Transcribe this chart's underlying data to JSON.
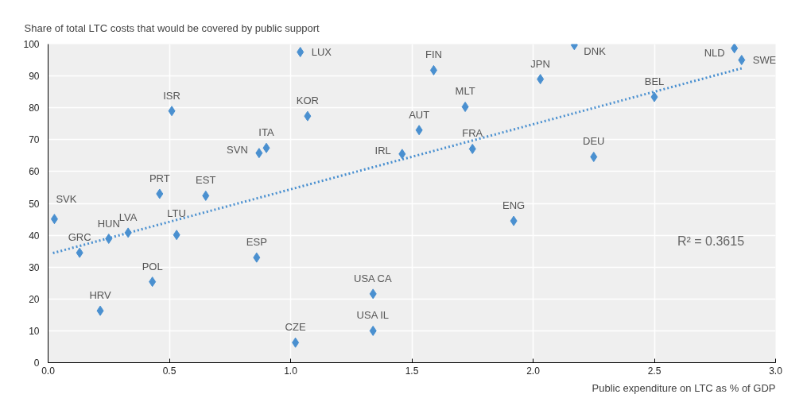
{
  "chart_data": {
    "type": "scatter",
    "ylabel": "Share of total LTC costs that would be covered by public support",
    "xlabel": "Public expenditure on LTC as % of GDP",
    "xlim": [
      0,
      3
    ],
    "xticks": [
      {
        "value": 0,
        "label": "0.0"
      },
      0.5,
      {
        "value": 1,
        "label": "1.0"
      },
      1.5,
      {
        "value": 2,
        "label": "2.0"
      },
      2.5,
      {
        "value": 3,
        "label": "3.0"
      }
    ],
    "ylim": [
      0,
      100
    ],
    "yticks": [
      0,
      10,
      20,
      30,
      40,
      50,
      60,
      70,
      80,
      90,
      100
    ],
    "grid": true,
    "marker": "diamond",
    "series": [
      {
        "color": "#4a90d0",
        "x": [
          0.026,
          0.13,
          0.25,
          0.33,
          0.215,
          0.43,
          0.46,
          0.51,
          0.53,
          0.65,
          0.86,
          0.87,
          0.9,
          1.02,
          1.04,
          1.07,
          1.34,
          1.34,
          1.46,
          1.53,
          1.59,
          1.72,
          1.75,
          1.92,
          2.03,
          2.17,
          2.25,
          2.5,
          2.83,
          2.86
        ],
        "values": [
          45.1,
          34.5,
          38.9,
          40.8,
          16.3,
          25.4,
          53,
          79,
          40.1,
          52.4,
          33,
          65.8,
          67.4,
          6.3,
          97.5,
          77.4,
          21.6,
          10,
          65.5,
          73,
          91.8,
          80.3,
          67.1,
          44.5,
          89,
          99.7,
          64.6,
          83.4,
          98.7,
          95
        ]
      },
      {
        "type": "line",
        "color": "#4a90d0",
        "line_style": "dotted",
        "marker": "none",
        "x": [
          0.02,
          2.86
        ],
        "values": [
          34.4,
          92.4
        ]
      }
    ],
    "annotations": [
      {
        "text": "SVK",
        "x": 0.026,
        "y": 45.1
      },
      {
        "text": "GRC",
        "x": 0.13,
        "y": 34.5
      },
      {
        "text": "HUN",
        "x": 0.25,
        "y": 38.9
      },
      {
        "text": "LVA",
        "x": 0.33,
        "y": 40.8
      },
      {
        "text": "HRV",
        "x": 0.215,
        "y": 16.3
      },
      {
        "text": "POL",
        "x": 0.43,
        "y": 25.4
      },
      {
        "text": "PRT",
        "x": 0.46,
        "y": 53
      },
      {
        "text": "ISR",
        "x": 0.51,
        "y": 79
      },
      {
        "text": "LTU",
        "x": 0.53,
        "y": 40.1
      },
      {
        "text": "EST",
        "x": 0.65,
        "y": 52.4
      },
      {
        "text": "ESP",
        "x": 0.86,
        "y": 33
      },
      {
        "text": "SVN",
        "x": 0.87,
        "y": 65.8
      },
      {
        "text": "ITA",
        "x": 0.9,
        "y": 67.4
      },
      {
        "text": "CZE",
        "x": 1.02,
        "y": 6.3
      },
      {
        "text": "LUX",
        "x": 1.04,
        "y": 97.5
      },
      {
        "text": "KOR",
        "x": 1.07,
        "y": 77.4
      },
      {
        "text": "USA CA",
        "x": 1.34,
        "y": 21.6
      },
      {
        "text": "USA IL",
        "x": 1.34,
        "y": 10
      },
      {
        "text": "IRL",
        "x": 1.46,
        "y": 65.5
      },
      {
        "text": "AUT",
        "x": 1.53,
        "y": 73
      },
      {
        "text": "FIN",
        "x": 1.59,
        "y": 91.8
      },
      {
        "text": "MLT",
        "x": 1.72,
        "y": 80.3
      },
      {
        "text": "FRA",
        "x": 1.75,
        "y": 67.1
      },
      {
        "text": "ENG",
        "x": 1.92,
        "y": 44.5
      },
      {
        "text": "JPN",
        "x": 2.03,
        "y": 89
      },
      {
        "text": "DNK",
        "x": 2.17,
        "y": 99.7
      },
      {
        "text": "DEU",
        "x": 2.25,
        "y": 64.6
      },
      {
        "text": "BEL",
        "x": 2.5,
        "y": 83.4
      },
      {
        "text": "NLD",
        "x": 2.83,
        "y": 98.7
      },
      {
        "text": "SWE",
        "x": 2.86,
        "y": 95
      },
      "R² = 0.3615"
    ]
  }
}
